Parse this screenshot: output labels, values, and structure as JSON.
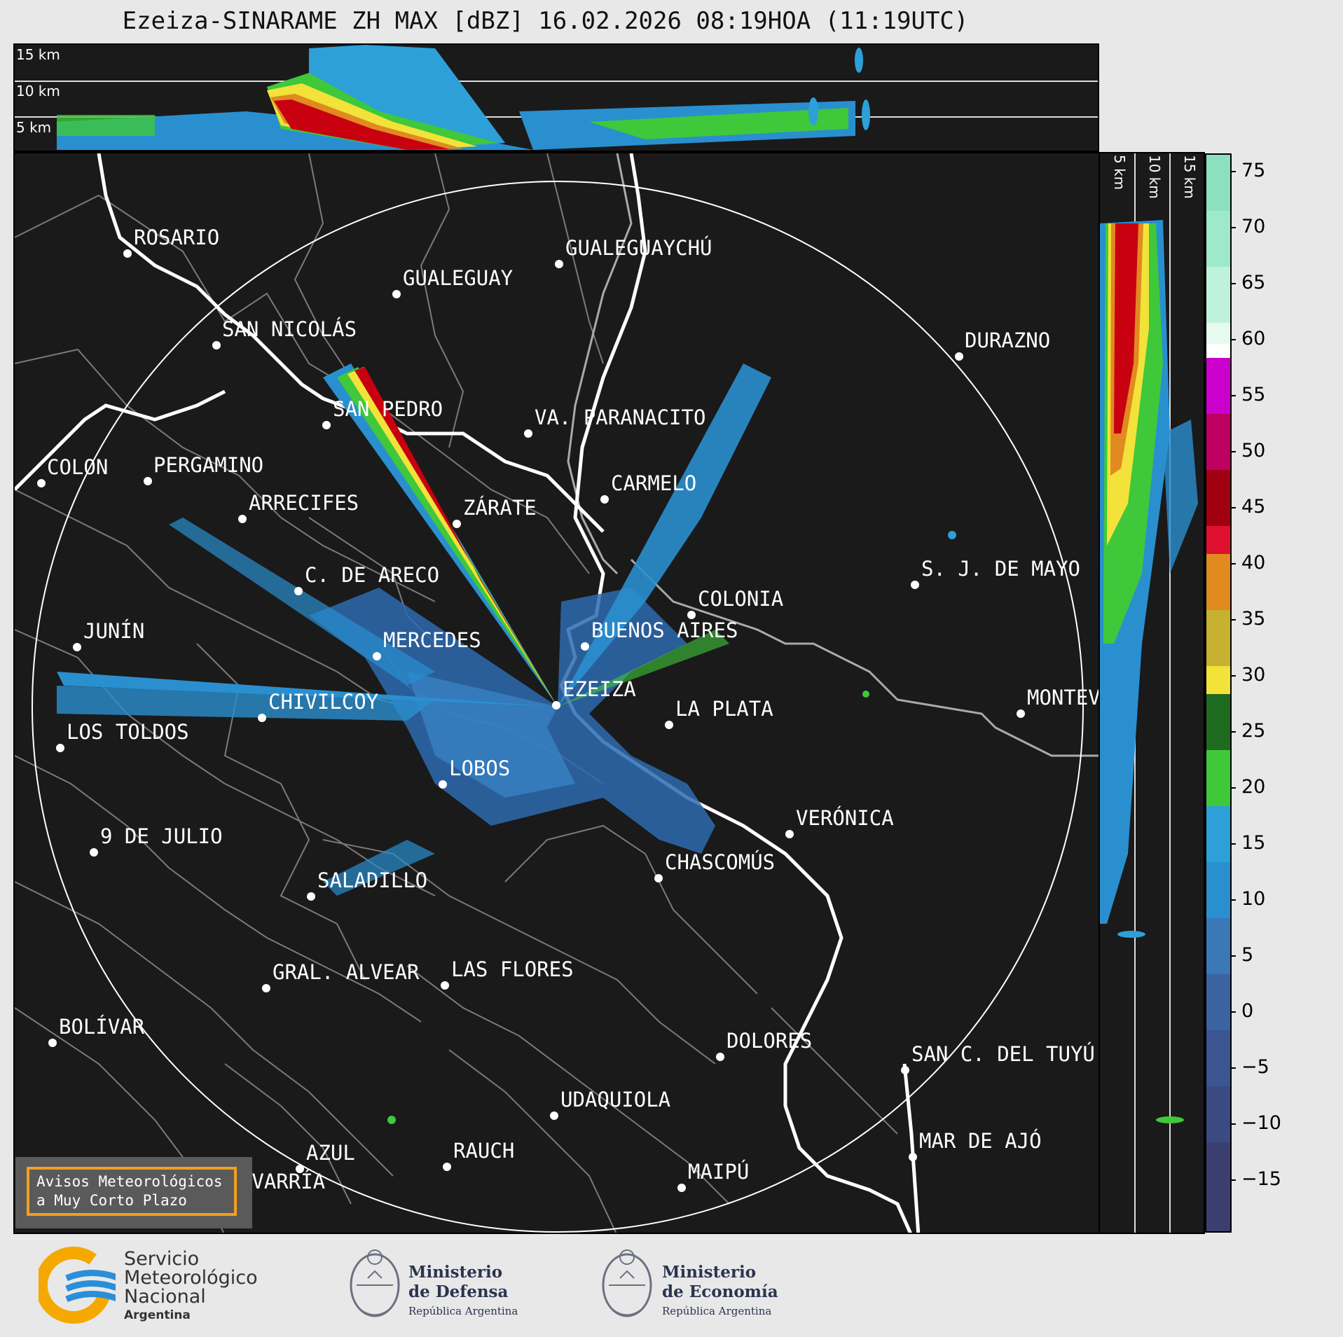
{
  "title": "Ezeiza-SINARAME ZH MAX [dBZ] 16.02.2026 08:19HOA (11:19UTC)",
  "altitude_labels": [
    "15 km",
    "10 km",
    "5 km"
  ],
  "side_labels": [
    "5 km",
    "10 km",
    "15 km"
  ],
  "colorbar": {
    "unit": "dBZ",
    "ticks": [
      "75",
      "70",
      "65",
      "60",
      "55",
      "50",
      "45",
      "40",
      "35",
      "30",
      "25",
      "20",
      "15",
      "10",
      "5",
      "0",
      "−5",
      "−10",
      "−15"
    ]
  },
  "cities": [
    {
      "name": "ROSARIO"
    },
    {
      "name": "GUALEGUAYCHÚ"
    },
    {
      "name": "GUALEGUAY"
    },
    {
      "name": "SAN NICOLÁS"
    },
    {
      "name": "DURAZNO"
    },
    {
      "name": "SAN PEDRO"
    },
    {
      "name": "VA. PARANACITO"
    },
    {
      "name": "COLON"
    },
    {
      "name": "PERGAMINO"
    },
    {
      "name": "CARMELO"
    },
    {
      "name": "ARRECIFES"
    },
    {
      "name": "ZÁRATE"
    },
    {
      "name": "S. J. DE MAYO"
    },
    {
      "name": "C. DE ARECO"
    },
    {
      "name": "COLONIA"
    },
    {
      "name": "JUNÍN"
    },
    {
      "name": "BUENOS AIRES"
    },
    {
      "name": "MERCEDES"
    },
    {
      "name": "EZEIZA"
    },
    {
      "name": "CHIVILCOY"
    },
    {
      "name": "MONTEVIDEO"
    },
    {
      "name": "LA PLATA"
    },
    {
      "name": "LOS TOLDOS"
    },
    {
      "name": "LOBOS"
    },
    {
      "name": "VERÓNICA"
    },
    {
      "name": "9 DE JULIO"
    },
    {
      "name": "CHASCOMÚS"
    },
    {
      "name": "SALADILLO"
    },
    {
      "name": "GRAL. ALVEAR"
    },
    {
      "name": "LAS FLORES"
    },
    {
      "name": "BOLÍVAR"
    },
    {
      "name": "DOLORES"
    },
    {
      "name": "SAN C. DEL TUYÚ"
    },
    {
      "name": "UDAQUIOLA"
    },
    {
      "name": "AZUL"
    },
    {
      "name": "RAUCH"
    },
    {
      "name": "MAR DE AJÓ"
    },
    {
      "name": "OLAVARRÍA"
    },
    {
      "name": "MAIPÚ"
    }
  ],
  "warning_box": {
    "line1": "Avisos Meteorológicos",
    "line2": "a Muy Corto Plazo"
  },
  "logos": {
    "smn": {
      "line1": "Servicio",
      "line2": "Meteorológico",
      "line3": "Nacional",
      "line4": "Argentina"
    },
    "defensa": {
      "line1": "Ministerio",
      "line2": "de Defensa",
      "line3": "República Argentina"
    },
    "economia": {
      "line1": "Ministerio",
      "line2": "de Economía",
      "line3": "República Argentina"
    }
  },
  "colors": {
    "background": "#1a1a1a",
    "accent_box": "#f2a01c",
    "smn_blue": "#2a8fd8",
    "smn_yellow": "#f5a800"
  }
}
